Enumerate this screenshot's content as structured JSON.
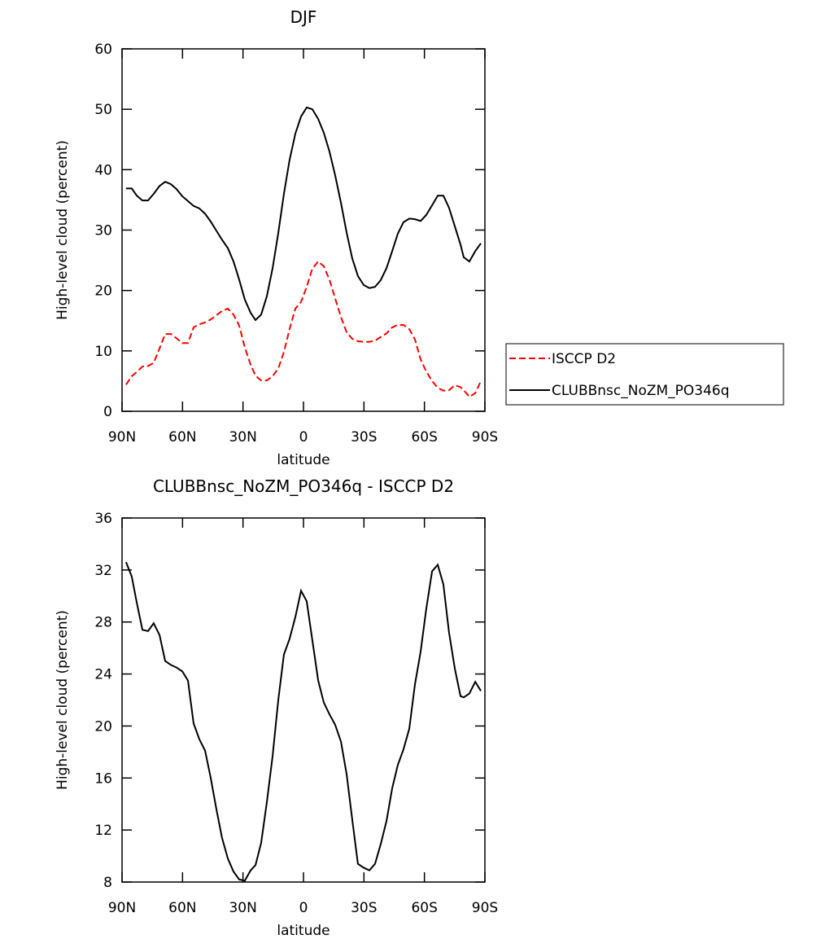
{
  "chart_data": [
    {
      "type": "line",
      "title": "DJF",
      "xlabel": "latitude",
      "ylabel": "High-level cloud (percent)",
      "x": [
        88,
        85.2,
        82.7,
        79.9,
        77.1,
        74.3,
        71.4,
        68.6,
        65.8,
        63,
        60.1,
        57.3,
        54.5,
        51.7,
        48.8,
        46,
        43.2,
        40.4,
        37.5,
        34.7,
        31.9,
        29.1,
        26.2,
        23.8,
        21,
        18.2,
        15.3,
        12.5,
        9.7,
        6.9,
        4,
        1.2,
        -1.6,
        -4.4,
        -7.3,
        -10.1,
        -12.9,
        -15.7,
        -18.6,
        -21.4,
        -24.2,
        -27,
        -29.9,
        -32.7,
        -35.5,
        -38.3,
        -41.2,
        -44,
        -46.8,
        -49.6,
        -52.5,
        -55.3,
        -58.1,
        -60.9,
        -63.8,
        -66.6,
        -69.4,
        -72.2,
        -75.1,
        -77.9,
        -79.5,
        -82.3,
        -85.2,
        -88
      ],
      "series": [
        {
          "name": "ISCCP D2",
          "color": "#ff0000",
          "dash": "dashed",
          "values": [
            4.4,
            5.8,
            6.5,
            7.4,
            7.5,
            8.0,
            10.4,
            12.8,
            12.8,
            12.1,
            11.3,
            11.3,
            13.9,
            14.4,
            14.7,
            15.2,
            15.9,
            16.6,
            17.0,
            16.0,
            14.2,
            10.6,
            7.7,
            5.9,
            5.1,
            5.1,
            5.8,
            7.1,
            9.8,
            13.6,
            17.0,
            18.1,
            20.6,
            23.6,
            24.8,
            24.0,
            21.8,
            18.7,
            15.6,
            13.1,
            12.0,
            11.6,
            11.5,
            11.5,
            11.7,
            12.3,
            12.9,
            13.9,
            14.3,
            14.3,
            13.6,
            11.9,
            8.6,
            6.6,
            5.0,
            3.9,
            3.4,
            3.5,
            4.3,
            4.0,
            3.5,
            2.4,
            3.0,
            5.0
          ]
        },
        {
          "name": "CLUBBnsc_NoZM_PO346q",
          "color": "#000000",
          "dash": "solid",
          "values": [
            36.9,
            36.9,
            35.7,
            34.9,
            34.9,
            36.0,
            37.3,
            38.0,
            37.6,
            36.8,
            35.6,
            34.8,
            34.0,
            33.6,
            32.7,
            31.4,
            29.9,
            28.4,
            27.0,
            24.8,
            21.8,
            18.5,
            16.3,
            15.1,
            16.0,
            19.0,
            23.7,
            29.5,
            36.0,
            41.6,
            46.0,
            48.8,
            50.3,
            50.0,
            48.4,
            46.1,
            43.0,
            39.1,
            34.5,
            29.6,
            25.3,
            22.4,
            20.9,
            20.4,
            20.6,
            21.7,
            23.7,
            26.5,
            29.4,
            31.3,
            31.9,
            31.8,
            31.5,
            32.5,
            34.1,
            35.7,
            35.7,
            33.7,
            30.6,
            27.6,
            25.5,
            24.8,
            26.5,
            27.8
          ]
        }
      ],
      "xlim": [
        90,
        -90
      ],
      "xticks": [
        {
          "value": 90,
          "label": "90N"
        },
        {
          "value": 60,
          "label": "60N"
        },
        {
          "value": 30,
          "label": "30N"
        },
        0,
        {
          "value": -30,
          "label": "30S"
        },
        {
          "value": -60,
          "label": "60S"
        },
        {
          "value": -90,
          "label": "90S"
        }
      ],
      "ylim": [
        0,
        60
      ],
      "yticks": [
        0,
        10,
        20,
        30,
        40,
        50,
        60
      ],
      "legend": "right"
    },
    {
      "type": "line",
      "title": "CLUBBnsc_NoZM_PO346q - ISCCP D2",
      "xlabel": "latitude",
      "ylabel": "High-level cloud (percent)",
      "x": [
        88,
        85.2,
        82.7,
        79.9,
        77.1,
        74.3,
        71.4,
        68.6,
        65.8,
        63,
        60.1,
        57.3,
        54.5,
        51.7,
        48.8,
        46,
        43.2,
        40.4,
        37.5,
        34.7,
        31.9,
        29.1,
        26.2,
        23.8,
        21,
        18.2,
        15.3,
        12.5,
        9.7,
        6.9,
        4,
        1.2,
        -1.6,
        -4.4,
        -7.3,
        -10.1,
        -12.9,
        -15.7,
        -18.6,
        -21.4,
        -24.2,
        -27,
        -29.9,
        -32.7,
        -35.5,
        -38.3,
        -41.2,
        -44,
        -46.8,
        -49.6,
        -52.5,
        -55.3,
        -58.1,
        -60.9,
        -63.8,
        -66.6,
        -69.4,
        -72.2,
        -75.1,
        -77.9,
        -79.5,
        -82.3,
        -85.2,
        -88
      ],
      "series": [
        {
          "color": "#000000",
          "dash": "solid",
          "values": [
            32.6,
            31.5,
            29.5,
            27.4,
            27.3,
            27.9,
            27.0,
            25.0,
            24.7,
            24.5,
            24.2,
            23.5,
            20.2,
            19.0,
            18.1,
            16.0,
            13.6,
            11.4,
            9.8,
            8.8,
            8.2,
            8.1,
            8.9,
            9.3,
            11.0,
            14.1,
            17.7,
            22.0,
            25.5,
            26.7,
            28.4,
            30.4,
            29.6,
            26.6,
            23.5,
            21.8,
            20.9,
            20.1,
            18.8,
            16.3,
            12.8,
            9.4,
            9.1,
            8.9,
            9.4,
            10.9,
            12.7,
            15.2,
            17.0,
            18.2,
            19.8,
            23.2,
            25.7,
            29.0,
            31.9,
            32.4,
            30.9,
            27.2,
            24.4,
            22.3,
            22.2,
            22.5,
            23.4,
            22.7
          ]
        }
      ],
      "xlim": [
        90,
        -90
      ],
      "xticks": [
        {
          "value": 90,
          "label": "90N"
        },
        {
          "value": 60,
          "label": "60N"
        },
        {
          "value": 30,
          "label": "30N"
        },
        0,
        {
          "value": -30,
          "label": "30S"
        },
        {
          "value": -60,
          "label": "60S"
        },
        {
          "value": -90,
          "label": "90S"
        }
      ],
      "ylim": [
        8,
        36
      ],
      "yticks": [
        8,
        12,
        16,
        20,
        24,
        28,
        32,
        36
      ]
    }
  ]
}
